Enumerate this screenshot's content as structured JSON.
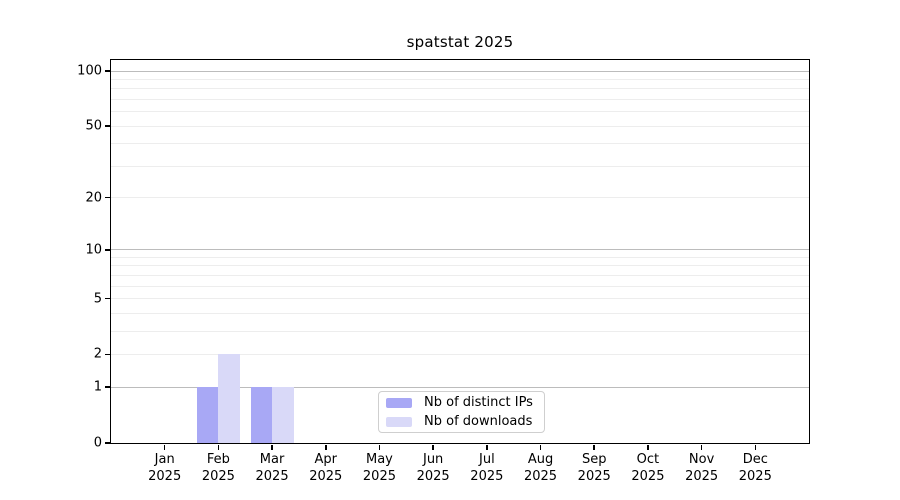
{
  "chart_data": {
    "type": "bar",
    "title": "spatstat 2025",
    "xlabel": "",
    "ylabel": "",
    "categories": [
      "Jan",
      "Feb",
      "Mar",
      "Apr",
      "May",
      "Jun",
      "Jul",
      "Aug",
      "Sep",
      "Oct",
      "Nov",
      "Dec"
    ],
    "category_year": "2025",
    "series": [
      {
        "name": "Nb of distinct IPs",
        "color": "#a8a8f5",
        "values": [
          0,
          1,
          1,
          0,
          0,
          0,
          0,
          0,
          0,
          0,
          0,
          0
        ]
      },
      {
        "name": "Nb of downloads",
        "color": "#d9d9f8",
        "values": [
          0,
          2,
          1,
          0,
          0,
          0,
          0,
          0,
          0,
          0,
          0,
          0
        ]
      }
    ],
    "yscale": "log1p",
    "ylim": [
      0,
      115
    ],
    "yticks": [
      0,
      1,
      2,
      5,
      10,
      20,
      50,
      100
    ],
    "major_gridlines": [
      1,
      10,
      100
    ],
    "minor_gridlines": [
      2,
      3,
      4,
      5,
      6,
      7,
      8,
      9,
      20,
      30,
      40,
      50,
      60,
      70,
      80,
      90
    ],
    "grid": "horizontal",
    "legend_position": "bottom-center-inside"
  }
}
